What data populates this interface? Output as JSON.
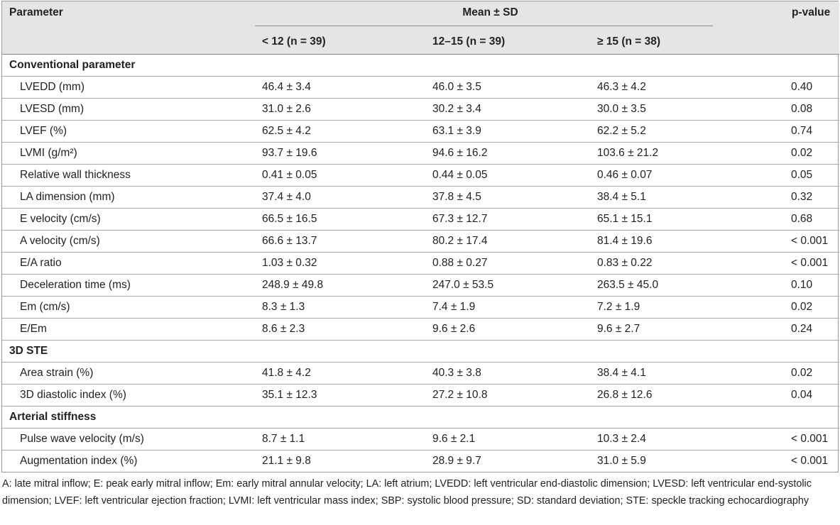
{
  "header": {
    "parameter": "Parameter",
    "mean_sd": "Mean ± SD",
    "p_value": "p-value",
    "groups": [
      "< 12 (n = 39)",
      "12–15 (n = 39)",
      "≥ 15 (n = 38)"
    ]
  },
  "sections": [
    {
      "title": "Conventional parameter",
      "rows": [
        {
          "param": "LVEDD (mm)",
          "v1": "46.4 ± 3.4",
          "v2": "46.0 ± 3.5",
          "v3": "46.3 ± 4.2",
          "p": "0.40"
        },
        {
          "param": "LVESD (mm)",
          "v1": "31.0 ± 2.6",
          "v2": "30.2 ± 3.4",
          "v3": "30.0 ± 3.5",
          "p": "0.08"
        },
        {
          "param": "LVEF (%)",
          "v1": "62.5 ± 4.2",
          "v2": "63.1 ± 3.9",
          "v3": "62.2 ± 5.2",
          "p": "0.74"
        },
        {
          "param": "LVMI (g/m²)",
          "v1": "93.7 ± 19.6",
          "v2": "94.6 ± 16.2",
          "v3": "103.6 ± 21.2",
          "p": "0.02"
        },
        {
          "param": "Relative wall thickness",
          "v1": "0.41 ± 0.05",
          "v2": "0.44 ± 0.05",
          "v3": "0.46 ± 0.07",
          "p": "0.05"
        },
        {
          "param": "LA dimension (mm)",
          "v1": "37.4 ± 4.0",
          "v2": "37.8 ± 4.5",
          "v3": "38.4 ± 5.1",
          "p": "0.32"
        },
        {
          "param": "E velocity (cm/s)",
          "v1": "66.5 ± 16.5",
          "v2": "67.3 ± 12.7",
          "v3": "65.1 ± 15.1",
          "p": "0.68"
        },
        {
          "param": "A velocity (cm/s)",
          "v1": "66.6 ± 13.7",
          "v2": "80.2 ± 17.4",
          "v3": "81.4 ± 19.6",
          "p": "< 0.001"
        },
        {
          "param": "E/A ratio",
          "v1": "1.03 ± 0.32",
          "v2": "0.88 ± 0.27",
          "v3": "0.83 ± 0.22",
          "p": "< 0.001"
        },
        {
          "param": "Deceleration time (ms)",
          "v1": "248.9 ± 49.8",
          "v2": "247.0 ± 53.5",
          "v3": "263.5 ± 45.0",
          "p": "0.10"
        },
        {
          "param": "Em (cm/s)",
          "v1": "8.3 ± 1.3",
          "v2": "7.4 ± 1.9",
          "v3": "7.2 ± 1.9",
          "p": "0.02"
        },
        {
          "param": "E/Em",
          "v1": "8.6 ± 2.3",
          "v2": "9.6 ± 2.6",
          "v3": "9.6 ± 2.7",
          "p": "0.24"
        }
      ]
    },
    {
      "title": "3D STE",
      "rows": [
        {
          "param": "Area strain (%)",
          "v1": "41.8 ± 4.2",
          "v2": "40.3 ± 3.8",
          "v3": "38.4 ± 4.1",
          "p": "0.02"
        },
        {
          "param": "3D diastolic index (%)",
          "v1": "35.1 ± 12.3",
          "v2": "27.2 ± 10.8",
          "v3": "26.8 ± 12.6",
          "p": "0.04"
        }
      ]
    },
    {
      "title": "Arterial stiffness",
      "rows": [
        {
          "param": "Pulse wave velocity (m/s)",
          "v1": "8.7 ± 1.1",
          "v2": "9.6 ± 2.1",
          "v3": "10.3 ± 2.4",
          "p": "< 0.001"
        },
        {
          "param": "Augmentation index (%)",
          "v1": "21.1 ± 9.8",
          "v2": "28.9 ± 9.7",
          "v3": "31.0 ± 5.9",
          "p": "< 0.001"
        }
      ]
    }
  ],
  "footnote": "A: late mitral inflow; E: peak early mitral inflow; Em: early mitral annular velocity; LA: left atrium; LVEDD: left ventricular end-diastolic dimension; LVESD: left ventricular end-systolic dimension; LVEF: left ventricular ejection fraction; LVMI: left ventricular mass index; SBP: systolic blood pressure; SD: standard deviation; STE: speckle tracking echocardiography"
}
